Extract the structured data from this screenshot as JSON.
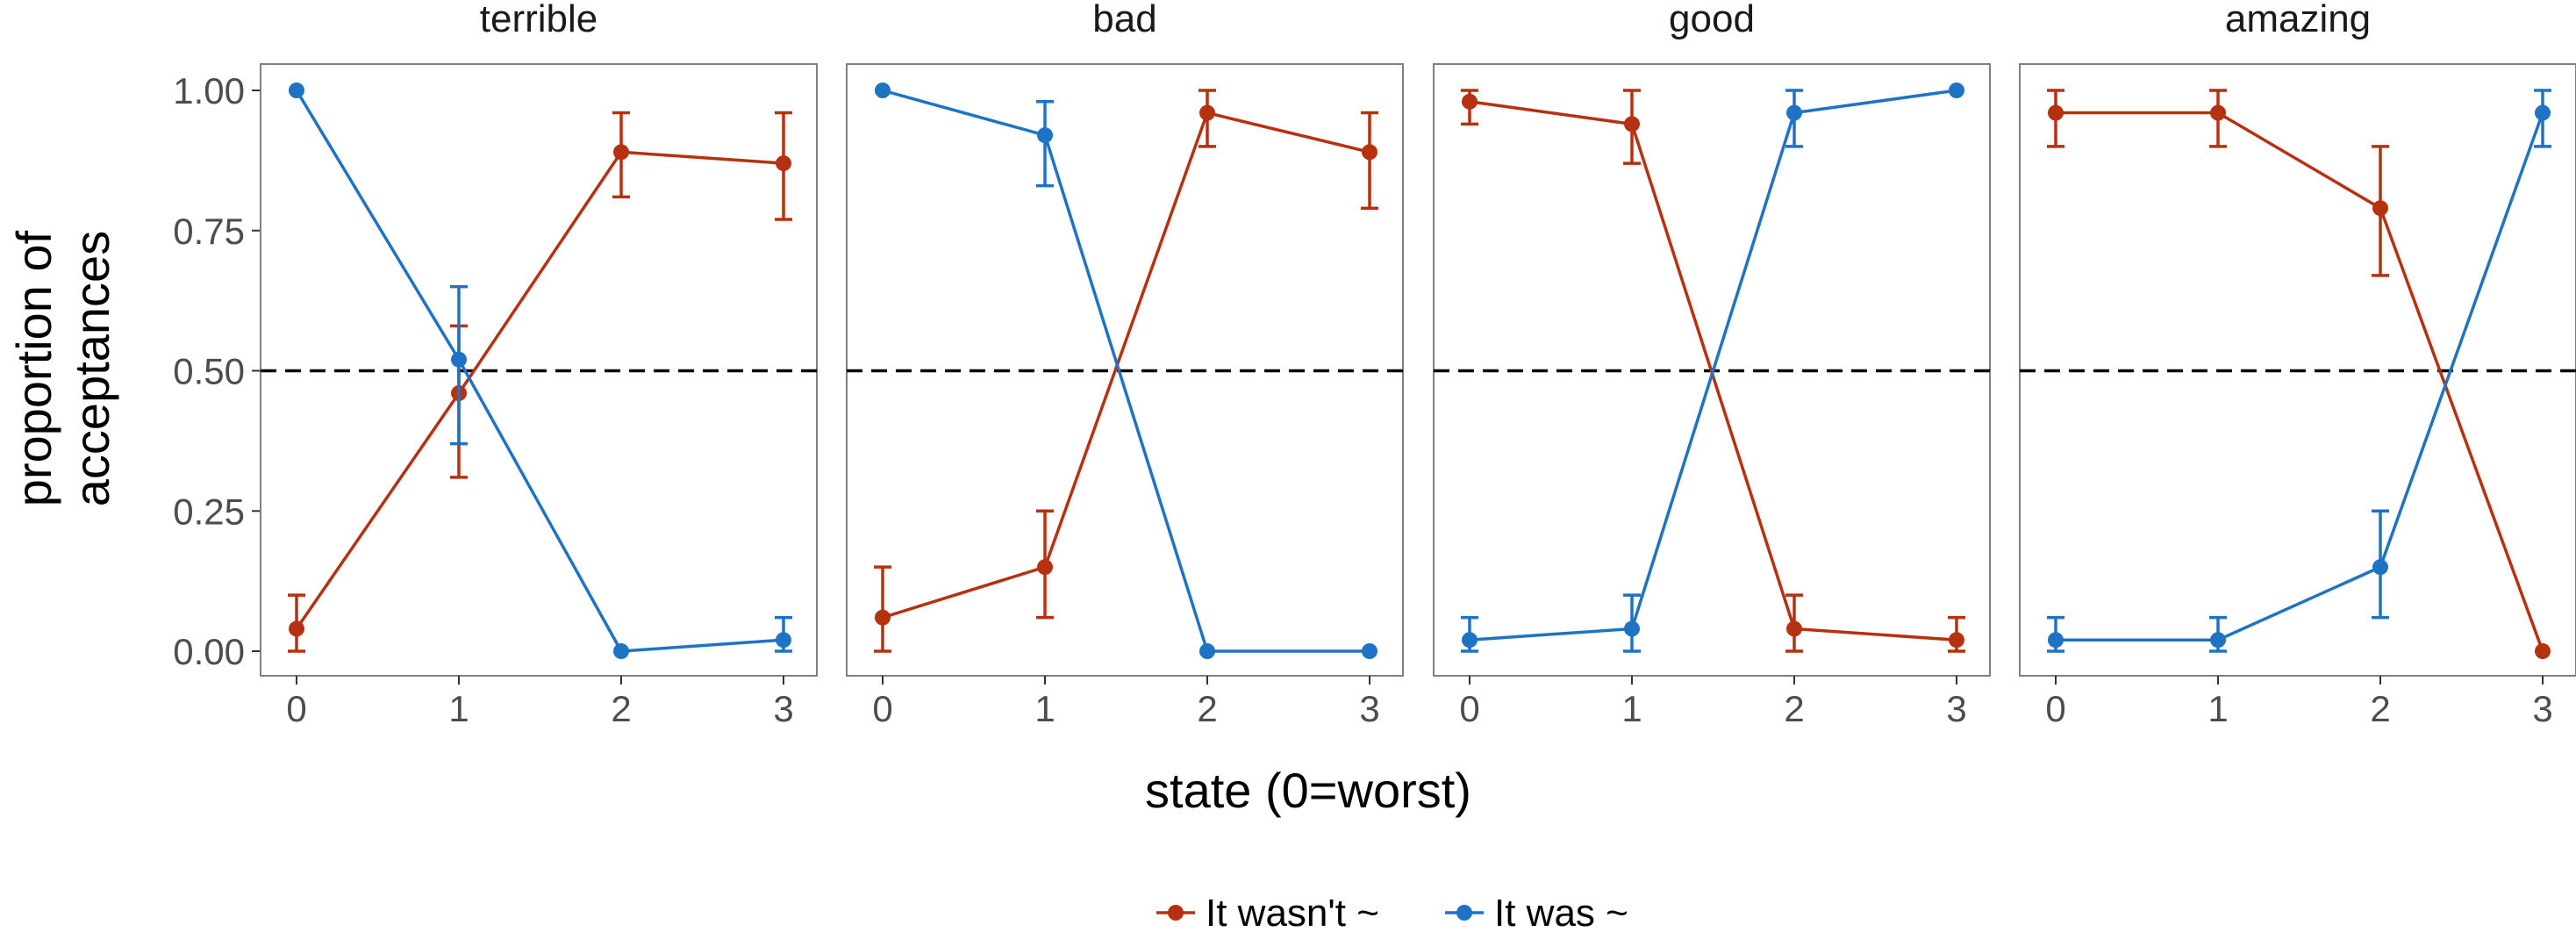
{
  "chart_data": {
    "type": "line",
    "xlabel": "state (0=worst)",
    "ylabel": [
      "proportion of",
      "acceptances"
    ],
    "x": [
      0,
      1,
      2,
      3
    ],
    "xticks": [
      "0",
      "1",
      "2",
      "3"
    ],
    "yticks": [
      "0.00",
      "0.25",
      "0.50",
      "0.75",
      "1.00"
    ],
    "ylim": [
      0,
      1
    ],
    "reference_line": {
      "y": 0.5,
      "style": "dashed"
    },
    "grid": false,
    "legend_position": "bottom",
    "legend": [
      {
        "label": "It wasn't ~",
        "color": "#b5310f"
      },
      {
        "label": "It was ~",
        "color": "#1f73c4"
      }
    ],
    "panels": [
      {
        "title": "terrible",
        "series": [
          {
            "name": "It wasn't ~",
            "values": [
              0.04,
              0.46,
              0.89,
              0.87
            ],
            "err_low": [
              0.0,
              0.31,
              0.81,
              0.77
            ],
            "err_high": [
              0.1,
              0.58,
              0.96,
              0.96
            ]
          },
          {
            "name": "It was ~",
            "values": [
              1.0,
              0.52,
              0.0,
              0.02
            ],
            "err_low": [
              1.0,
              0.37,
              0.0,
              0.0
            ],
            "err_high": [
              1.0,
              0.65,
              0.0,
              0.06
            ]
          }
        ]
      },
      {
        "title": "bad",
        "series": [
          {
            "name": "It wasn't ~",
            "values": [
              0.06,
              0.15,
              0.96,
              0.89
            ],
            "err_low": [
              0.0,
              0.06,
              0.9,
              0.79
            ],
            "err_high": [
              0.15,
              0.25,
              1.0,
              0.96
            ]
          },
          {
            "name": "It was ~",
            "values": [
              1.0,
              0.92,
              0.0,
              0.0
            ],
            "err_low": [
              1.0,
              0.83,
              0.0,
              0.0
            ],
            "err_high": [
              1.0,
              0.98,
              0.0,
              0.0
            ]
          }
        ]
      },
      {
        "title": "good",
        "series": [
          {
            "name": "It wasn't ~",
            "values": [
              0.98,
              0.94,
              0.04,
              0.02
            ],
            "err_low": [
              0.94,
              0.87,
              0.0,
              0.0
            ],
            "err_high": [
              1.0,
              1.0,
              0.1,
              0.06
            ]
          },
          {
            "name": "It was ~",
            "values": [
              0.02,
              0.04,
              0.96,
              1.0
            ],
            "err_low": [
              0.0,
              0.0,
              0.9,
              1.0
            ],
            "err_high": [
              0.06,
              0.1,
              1.0,
              1.0
            ]
          }
        ]
      },
      {
        "title": "amazing",
        "series": [
          {
            "name": "It wasn't ~",
            "values": [
              0.96,
              0.96,
              0.79,
              0.0
            ],
            "err_low": [
              0.9,
              0.9,
              0.67,
              0.0
            ],
            "err_high": [
              1.0,
              1.0,
              0.9,
              0.0
            ]
          },
          {
            "name": "It was ~",
            "values": [
              0.02,
              0.02,
              0.15,
              0.96
            ],
            "err_low": [
              0.0,
              0.0,
              0.06,
              0.9
            ],
            "err_high": [
              0.06,
              0.06,
              0.25,
              1.0
            ]
          }
        ]
      }
    ]
  }
}
